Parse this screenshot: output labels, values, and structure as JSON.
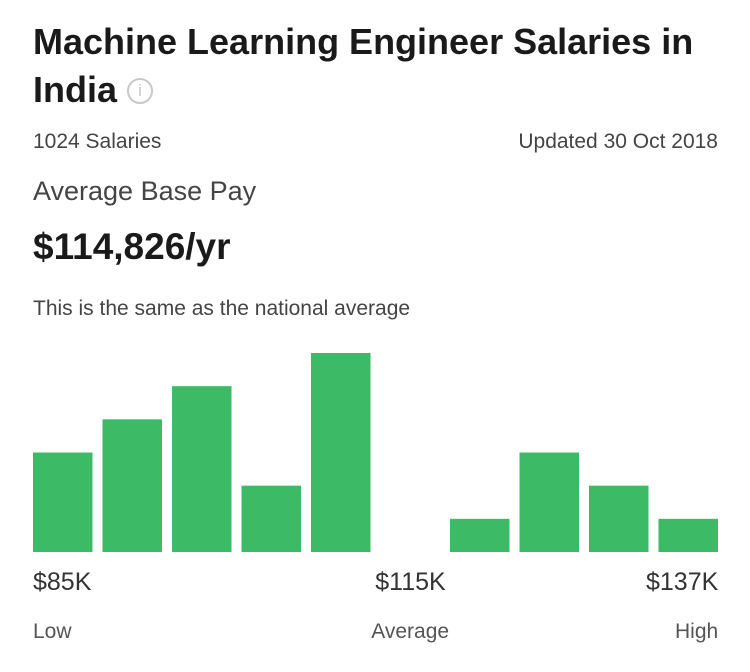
{
  "header": {
    "title": "Machine Learning Engineer Salaries in India",
    "salary_count": "1024 Salaries",
    "updated": "Updated 30 Oct 2018"
  },
  "summary": {
    "label": "Average Base Pay",
    "pay": "$114,826/yr",
    "comparison": "This is the same as the national average"
  },
  "chart_data": {
    "type": "bar",
    "values": [
      3,
      4,
      5,
      2,
      6,
      0,
      1,
      3,
      2,
      1
    ],
    "color": "#3dba65",
    "ylim": [
      0,
      6
    ],
    "range_labels": [
      {
        "amount": "$85K",
        "caption": "Low"
      },
      {
        "amount": "$115K",
        "caption": "Average"
      },
      {
        "amount": "$137K",
        "caption": "High"
      }
    ]
  }
}
